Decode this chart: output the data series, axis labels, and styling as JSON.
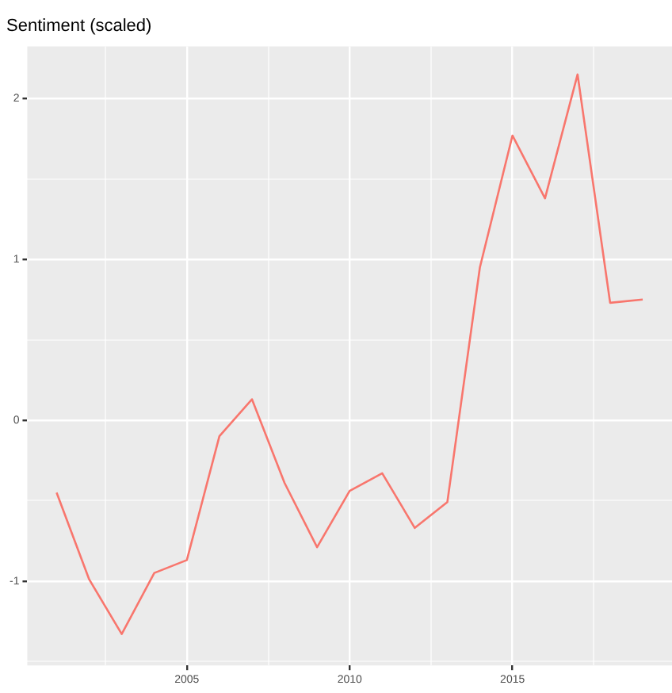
{
  "chart_data": {
    "type": "line",
    "title": "Sentiment (scaled)",
    "x": [
      2001,
      2002,
      2003,
      2004,
      2005,
      2006,
      2007,
      2008,
      2009,
      2010,
      2011,
      2012,
      2013,
      2014,
      2015,
      2016,
      2017,
      2018,
      2019
    ],
    "series": [
      {
        "color": "#f8766d",
        "values": [
          -0.45,
          -0.99,
          -1.33,
          -0.95,
          -0.87,
          -0.1,
          0.13,
          -0.39,
          -0.79,
          -0.44,
          -0.33,
          -0.67,
          -0.51,
          0.95,
          1.77,
          1.38,
          2.15,
          0.73,
          0.75
        ]
      }
    ],
    "xlim": [
      2000.1,
      2019.9
    ],
    "xticks": [
      {
        "value": 2002.5,
        "label": null
      },
      2005,
      {
        "value": 2007.5,
        "label": null
      },
      2010,
      {
        "value": 2012.5,
        "label": null
      },
      2015,
      {
        "value": 2017.5,
        "label": null
      }
    ],
    "ylim": [
      -1.525,
      2.325
    ],
    "yticks": [
      {
        "value": -1.5,
        "label": null
      },
      -1,
      {
        "value": -0.5,
        "label": null
      },
      0,
      {
        "value": 0.5,
        "label": null
      },
      1,
      {
        "value": 1.5,
        "label": null
      },
      2
    ],
    "grid": true,
    "legend": false,
    "marker": "none",
    "line_style": "solid"
  }
}
